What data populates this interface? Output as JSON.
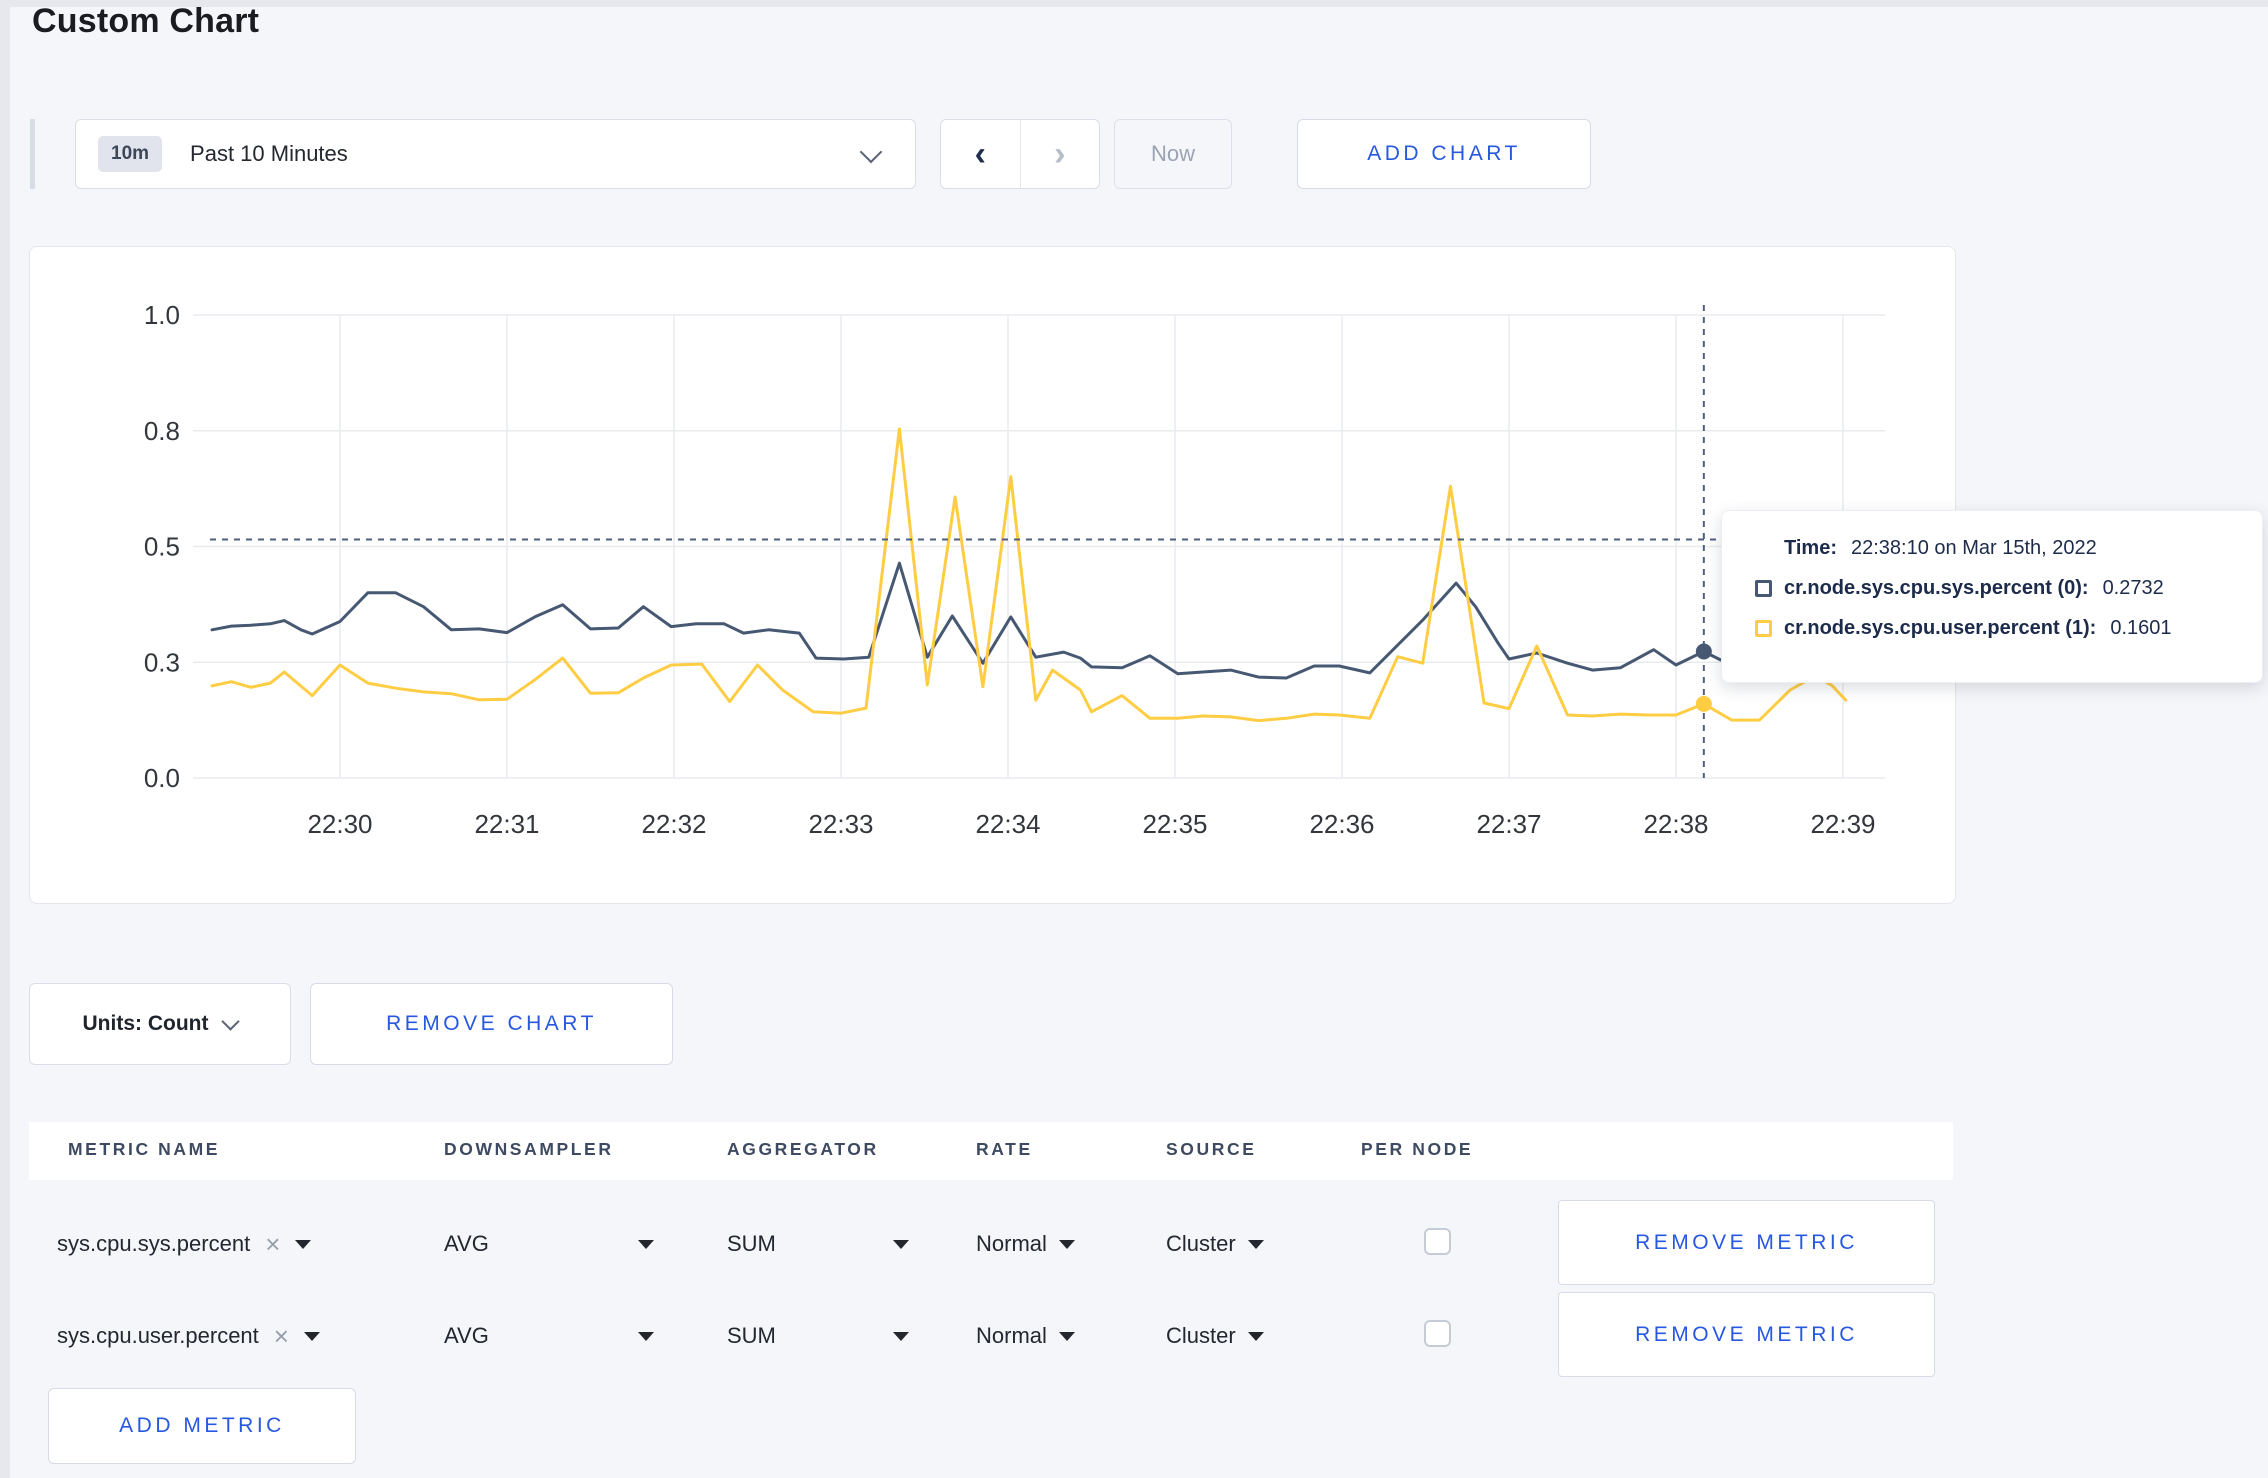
{
  "page": {
    "title": "Custom Chart"
  },
  "toolbar": {
    "time_badge": "10m",
    "time_label": "Past 10 Minutes",
    "now_label": "Now",
    "add_chart_label": "ADD CHART",
    "icons": {
      "prev": "‹",
      "next": "›",
      "chevron_down": "chevron-down",
      "clear": "×"
    }
  },
  "colors": {
    "accent_blue": "#2857e0",
    "series_sys": "#475872",
    "series_user": "#ffcd44",
    "crosshair": "#4e5f7e",
    "grid": "#e9ebef"
  },
  "chart_data": {
    "type": "line",
    "title": "",
    "xlabel": "",
    "ylabel": "",
    "grid": true,
    "legend_position": "tooltip",
    "x_axis": {
      "ticks": [
        "22:30",
        "22:31",
        "22:32",
        "22:33",
        "22:34",
        "22:35",
        "22:36",
        "22:37",
        "22:38",
        "22:39"
      ],
      "time_origin": "22:30:00",
      "visible_range_seconds": [
        -46,
        545
      ]
    },
    "y_axis": {
      "tick_labels": [
        "0.0",
        "0.3",
        "0.5",
        "0.8",
        "1.0"
      ],
      "tick_values": [
        0,
        0.25,
        0.5,
        0.75,
        1.0
      ],
      "range": [
        0,
        1
      ]
    },
    "series": [
      {
        "name": "cr.node.sys.cpu.sys.percent",
        "color": "#475872",
        "points": [
          [
            -46,
            0.32
          ],
          [
            -39,
            0.328
          ],
          [
            -32,
            0.33
          ],
          [
            -25,
            0.333
          ],
          [
            -20,
            0.34
          ],
          [
            -14,
            0.32
          ],
          [
            -10,
            0.311
          ],
          [
            0,
            0.338
          ],
          [
            10,
            0.4
          ],
          [
            20,
            0.4
          ],
          [
            30,
            0.37
          ],
          [
            40,
            0.32
          ],
          [
            50,
            0.322
          ],
          [
            60,
            0.314
          ],
          [
            70,
            0.348
          ],
          [
            80,
            0.374
          ],
          [
            90,
            0.322
          ],
          [
            100,
            0.324
          ],
          [
            109,
            0.37
          ],
          [
            119,
            0.327
          ],
          [
            128,
            0.333
          ],
          [
            138,
            0.333
          ],
          [
            145,
            0.313
          ],
          [
            154,
            0.32
          ],
          [
            165,
            0.313
          ],
          [
            171,
            0.259
          ],
          [
            181,
            0.257
          ],
          [
            190,
            0.261
          ],
          [
            201,
            0.464
          ],
          [
            211,
            0.261
          ],
          [
            220,
            0.35
          ],
          [
            231,
            0.248
          ],
          [
            241,
            0.348
          ],
          [
            250,
            0.261
          ],
          [
            260,
            0.272
          ],
          [
            266,
            0.259
          ],
          [
            270,
            0.24
          ],
          [
            281,
            0.238
          ],
          [
            291,
            0.264
          ],
          [
            301,
            0.225
          ],
          [
            310,
            0.229
          ],
          [
            320,
            0.233
          ],
          [
            330,
            0.218
          ],
          [
            340,
            0.216
          ],
          [
            350,
            0.242
          ],
          [
            359,
            0.242
          ],
          [
            370,
            0.227
          ],
          [
            380,
            0.287
          ],
          [
            389,
            0.341
          ],
          [
            401,
            0.421
          ],
          [
            408,
            0.37
          ],
          [
            416,
            0.292
          ],
          [
            420,
            0.257
          ],
          [
            430,
            0.27
          ],
          [
            441,
            0.248
          ],
          [
            450,
            0.233
          ],
          [
            460,
            0.238
          ],
          [
            472,
            0.277
          ],
          [
            480,
            0.244
          ],
          [
            490,
            0.2732
          ],
          [
            496,
            0.255
          ],
          [
            505,
            0.268
          ],
          [
            515,
            0.283
          ],
          [
            525,
            0.295
          ],
          [
            535,
            0.3
          ],
          [
            545,
            0.296
          ]
        ]
      },
      {
        "name": "cr.node.sys.cpu.user.percent",
        "color": "#ffcd44",
        "points": [
          [
            -46,
            0.199
          ],
          [
            -39,
            0.208
          ],
          [
            -32,
            0.196
          ],
          [
            -25,
            0.205
          ],
          [
            -20,
            0.229
          ],
          [
            -10,
            0.178
          ],
          [
            0,
            0.244
          ],
          [
            10,
            0.205
          ],
          [
            20,
            0.194
          ],
          [
            30,
            0.186
          ],
          [
            40,
            0.182
          ],
          [
            50,
            0.169
          ],
          [
            60,
            0.17
          ],
          [
            70,
            0.212
          ],
          [
            80,
            0.259
          ],
          [
            90,
            0.183
          ],
          [
            100,
            0.184
          ],
          [
            109,
            0.216
          ],
          [
            119,
            0.244
          ],
          [
            130,
            0.246
          ],
          [
            140,
            0.165
          ],
          [
            150,
            0.244
          ],
          [
            159,
            0.19
          ],
          [
            170,
            0.143
          ],
          [
            180,
            0.14
          ],
          [
            189,
            0.151
          ],
          [
            201,
            0.754
          ],
          [
            211,
            0.201
          ],
          [
            221,
            0.607
          ],
          [
            231,
            0.197
          ],
          [
            241,
            0.651
          ],
          [
            250,
            0.168
          ],
          [
            256,
            0.233
          ],
          [
            266,
            0.19
          ],
          [
            270,
            0.143
          ],
          [
            281,
            0.178
          ],
          [
            291,
            0.129
          ],
          [
            301,
            0.129
          ],
          [
            310,
            0.134
          ],
          [
            320,
            0.132
          ],
          [
            330,
            0.124
          ],
          [
            340,
            0.129
          ],
          [
            350,
            0.138
          ],
          [
            359,
            0.136
          ],
          [
            370,
            0.129
          ],
          [
            380,
            0.262
          ],
          [
            389,
            0.248
          ],
          [
            399,
            0.63
          ],
          [
            411,
            0.162
          ],
          [
            420,
            0.15
          ],
          [
            430,
            0.285
          ],
          [
            441,
            0.136
          ],
          [
            450,
            0.134
          ],
          [
            460,
            0.138
          ],
          [
            470,
            0.136
          ],
          [
            480,
            0.136
          ],
          [
            490,
            0.1601
          ],
          [
            500,
            0.125
          ],
          [
            510,
            0.125
          ],
          [
            521,
            0.19
          ],
          [
            530,
            0.22
          ],
          [
            536,
            0.2
          ],
          [
            541,
            0.168
          ]
        ]
      }
    ],
    "crosshair": {
      "t": 490,
      "cursor_value": 0.515,
      "values": [
        0.2732,
        0.1601
      ]
    }
  },
  "tooltip": {
    "time_label": "Time:",
    "time_value": "22:38:10 on Mar 15th, 2022",
    "series": [
      {
        "name": "cr.node.sys.cpu.sys.percent (0):",
        "value": "0.2732",
        "color": "#475872"
      },
      {
        "name": "cr.node.sys.cpu.user.percent (1):",
        "value": "0.1601",
        "color": "#ffcd44"
      }
    ]
  },
  "units": {
    "label": "Units: Count"
  },
  "remove_chart_label": "REMOVE CHART",
  "metrics_table": {
    "headers": [
      "METRIC NAME",
      "DOWNSAMPLER",
      "AGGREGATOR",
      "RATE",
      "SOURCE",
      "PER NODE"
    ],
    "remove_metric_label": "REMOVE METRIC",
    "add_metric_label": "ADD METRIC",
    "rows": [
      {
        "metric_name": "sys.cpu.sys.percent",
        "downsampler": "AVG",
        "aggregator": "SUM",
        "rate": "Normal",
        "source": "Cluster",
        "per_node_checked": false
      },
      {
        "metric_name": "sys.cpu.user.percent",
        "downsampler": "AVG",
        "aggregator": "SUM",
        "rate": "Normal",
        "source": "Cluster",
        "per_node_checked": false
      }
    ]
  }
}
